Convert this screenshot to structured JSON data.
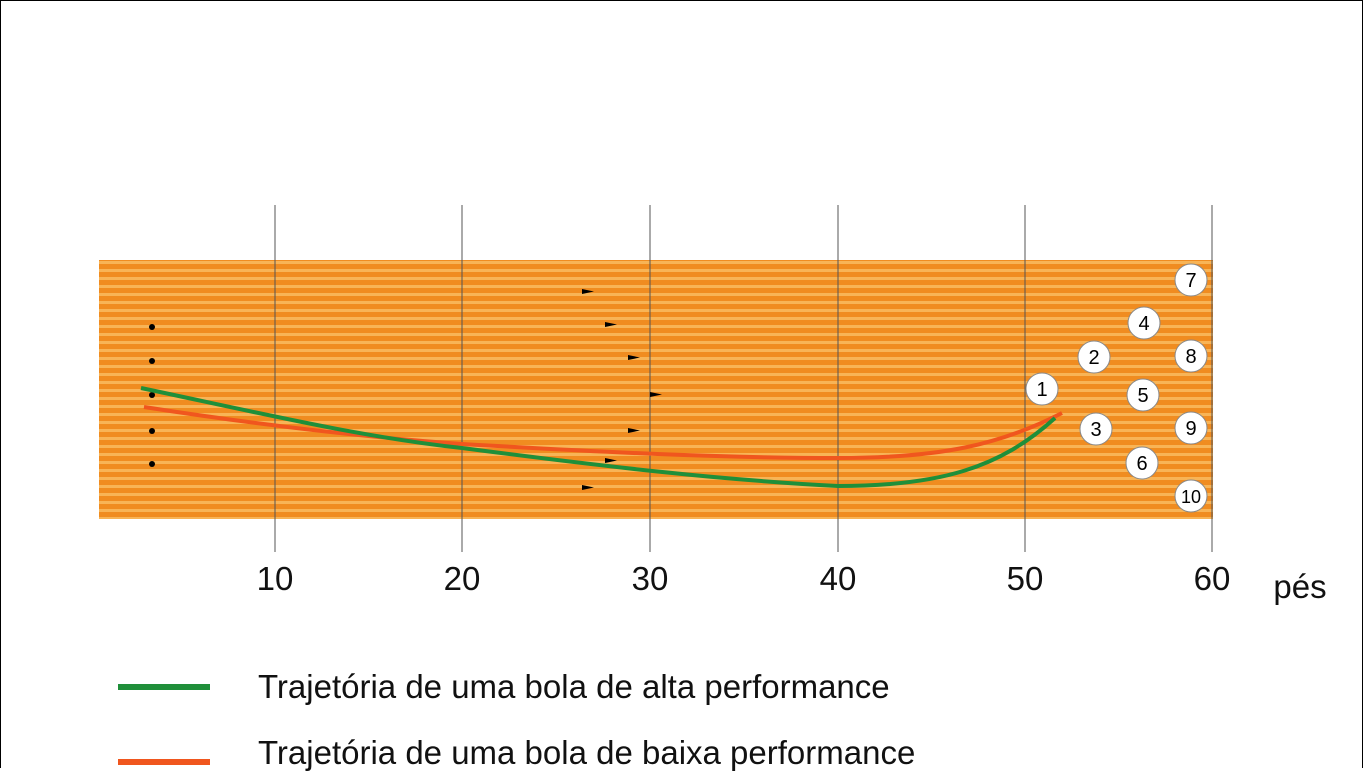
{
  "lane": {
    "x_axis_unit": "pés",
    "x_ticks": [
      10,
      20,
      30,
      40,
      50,
      60
    ],
    "pins": [
      "1",
      "2",
      "3",
      "4",
      "5",
      "6",
      "7",
      "8",
      "9",
      "10"
    ],
    "colors": {
      "lane_base": "#f08c20",
      "lane_stripe": "#f8b456",
      "gridline": "#555555"
    }
  },
  "legend": [
    {
      "label": "Trajetória de uma bola de alta performance",
      "color": "#1f8f3a"
    },
    {
      "label": "Trajetória de uma bola de baixa performance",
      "color": "#f0561e"
    }
  ]
}
